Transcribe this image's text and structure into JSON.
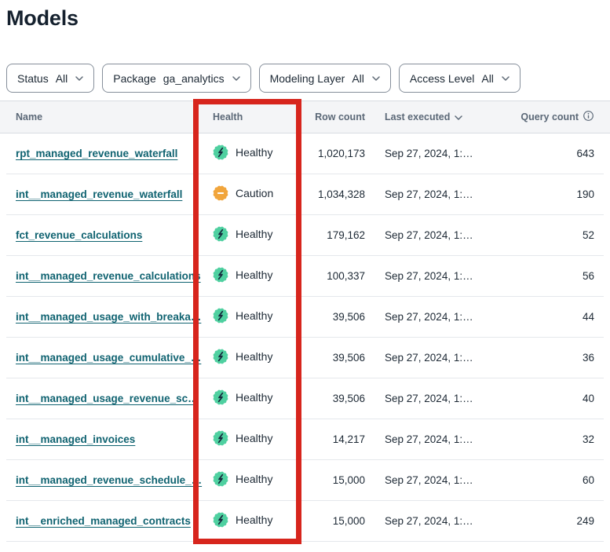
{
  "page": {
    "title": "Models"
  },
  "colors": {
    "healthy_green": "#4fd0a0",
    "caution_amber": "#f1a53c",
    "link_teal": "#106371",
    "highlight_red": "#d7251d",
    "bolt_ink": "#16293d"
  },
  "filters": [
    {
      "label": "Status",
      "value": "All"
    },
    {
      "label": "Package",
      "value": "ga_analytics"
    },
    {
      "label": "Modeling Layer",
      "value": "All"
    },
    {
      "label": "Access Level",
      "value": "All"
    }
  ],
  "table": {
    "columns": {
      "name": "Name",
      "health": "Health",
      "row_count": "Row count",
      "last_executed": "Last executed",
      "query_count": "Query count"
    },
    "rows": [
      {
        "name": "rpt_managed_revenue_waterfall",
        "health": "Healthy",
        "status": "healthy",
        "row_count": "1,020,173",
        "last_executed": "Sep 27, 2024, 1:…",
        "query_count": "643"
      },
      {
        "name": "int__managed_revenue_waterfall",
        "health": "Caution",
        "status": "caution",
        "row_count": "1,034,328",
        "last_executed": "Sep 27, 2024, 1:…",
        "query_count": "190"
      },
      {
        "name": "fct_revenue_calculations",
        "health": "Healthy",
        "status": "healthy",
        "row_count": "179,162",
        "last_executed": "Sep 27, 2024, 1:…",
        "query_count": "52"
      },
      {
        "name": "int__managed_revenue_calculations",
        "health": "Healthy",
        "status": "healthy",
        "row_count": "100,337",
        "last_executed": "Sep 27, 2024, 1:…",
        "query_count": "56"
      },
      {
        "name": "int__managed_usage_with_breaka…",
        "health": "Healthy",
        "status": "healthy",
        "row_count": "39,506",
        "last_executed": "Sep 27, 2024, 1:…",
        "query_count": "44"
      },
      {
        "name": "int__managed_usage_cumulative_…",
        "health": "Healthy",
        "status": "healthy",
        "row_count": "39,506",
        "last_executed": "Sep 27, 2024, 1:…",
        "query_count": "36"
      },
      {
        "name": "int__managed_usage_revenue_sc…",
        "health": "Healthy",
        "status": "healthy",
        "row_count": "39,506",
        "last_executed": "Sep 27, 2024, 1:…",
        "query_count": "40"
      },
      {
        "name": "int__managed_invoices",
        "health": "Healthy",
        "status": "healthy",
        "row_count": "14,217",
        "last_executed": "Sep 27, 2024, 1:…",
        "query_count": "32"
      },
      {
        "name": "int__managed_revenue_schedule_…",
        "health": "Healthy",
        "status": "healthy",
        "row_count": "15,000",
        "last_executed": "Sep 27, 2024, 1:…",
        "query_count": "60"
      },
      {
        "name": "int__enriched_managed_contracts",
        "health": "Healthy",
        "status": "healthy",
        "row_count": "15,000",
        "last_executed": "Sep 27, 2024, 1:…",
        "query_count": "249"
      }
    ]
  },
  "icons": {
    "healthy": "pulse-bolt-seal-icon",
    "caution": "minus-seal-icon",
    "filter_chevron": "chevron-down-icon",
    "sort": "sort-chevron-down-icon",
    "info": "info-circle-icon"
  },
  "annotation": {
    "highlighted_column": "Health"
  }
}
